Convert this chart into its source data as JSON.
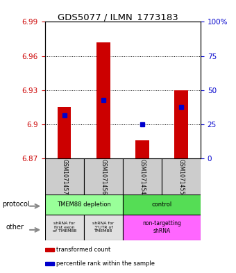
{
  "title": "GDS5077 / ILMN_1773183",
  "samples": [
    "GSM1071457",
    "GSM1071456",
    "GSM1071454",
    "GSM1071455"
  ],
  "bar_bottoms": [
    6.87,
    6.87,
    6.87,
    6.87
  ],
  "bar_tops": [
    6.915,
    6.972,
    6.886,
    6.93
  ],
  "percentile_values": [
    6.908,
    6.921,
    6.9,
    6.915
  ],
  "ylim_left": [
    6.87,
    6.99
  ],
  "yticks_left": [
    6.87,
    6.9,
    6.93,
    6.96,
    6.99
  ],
  "yticks_right": [
    0,
    25,
    50,
    75,
    100
  ],
  "bar_color": "#cc0000",
  "percentile_color": "#0000cc",
  "protocol_labels": [
    "TMEM88 depletion",
    "control"
  ],
  "other_labels": [
    "shRNA for\nfirst exon\nof TMEM88",
    "shRNA for\n3'UTR of\nTMEM88",
    "non-targetting\nshRNA"
  ],
  "legend_items": [
    "transformed count",
    "percentile rank within the sample"
  ],
  "legend_colors": [
    "#cc0000",
    "#0000cc"
  ],
  "bg_color": "#ffffff",
  "left_label_color": "#cc0000",
  "right_label_color": "#0000cc"
}
